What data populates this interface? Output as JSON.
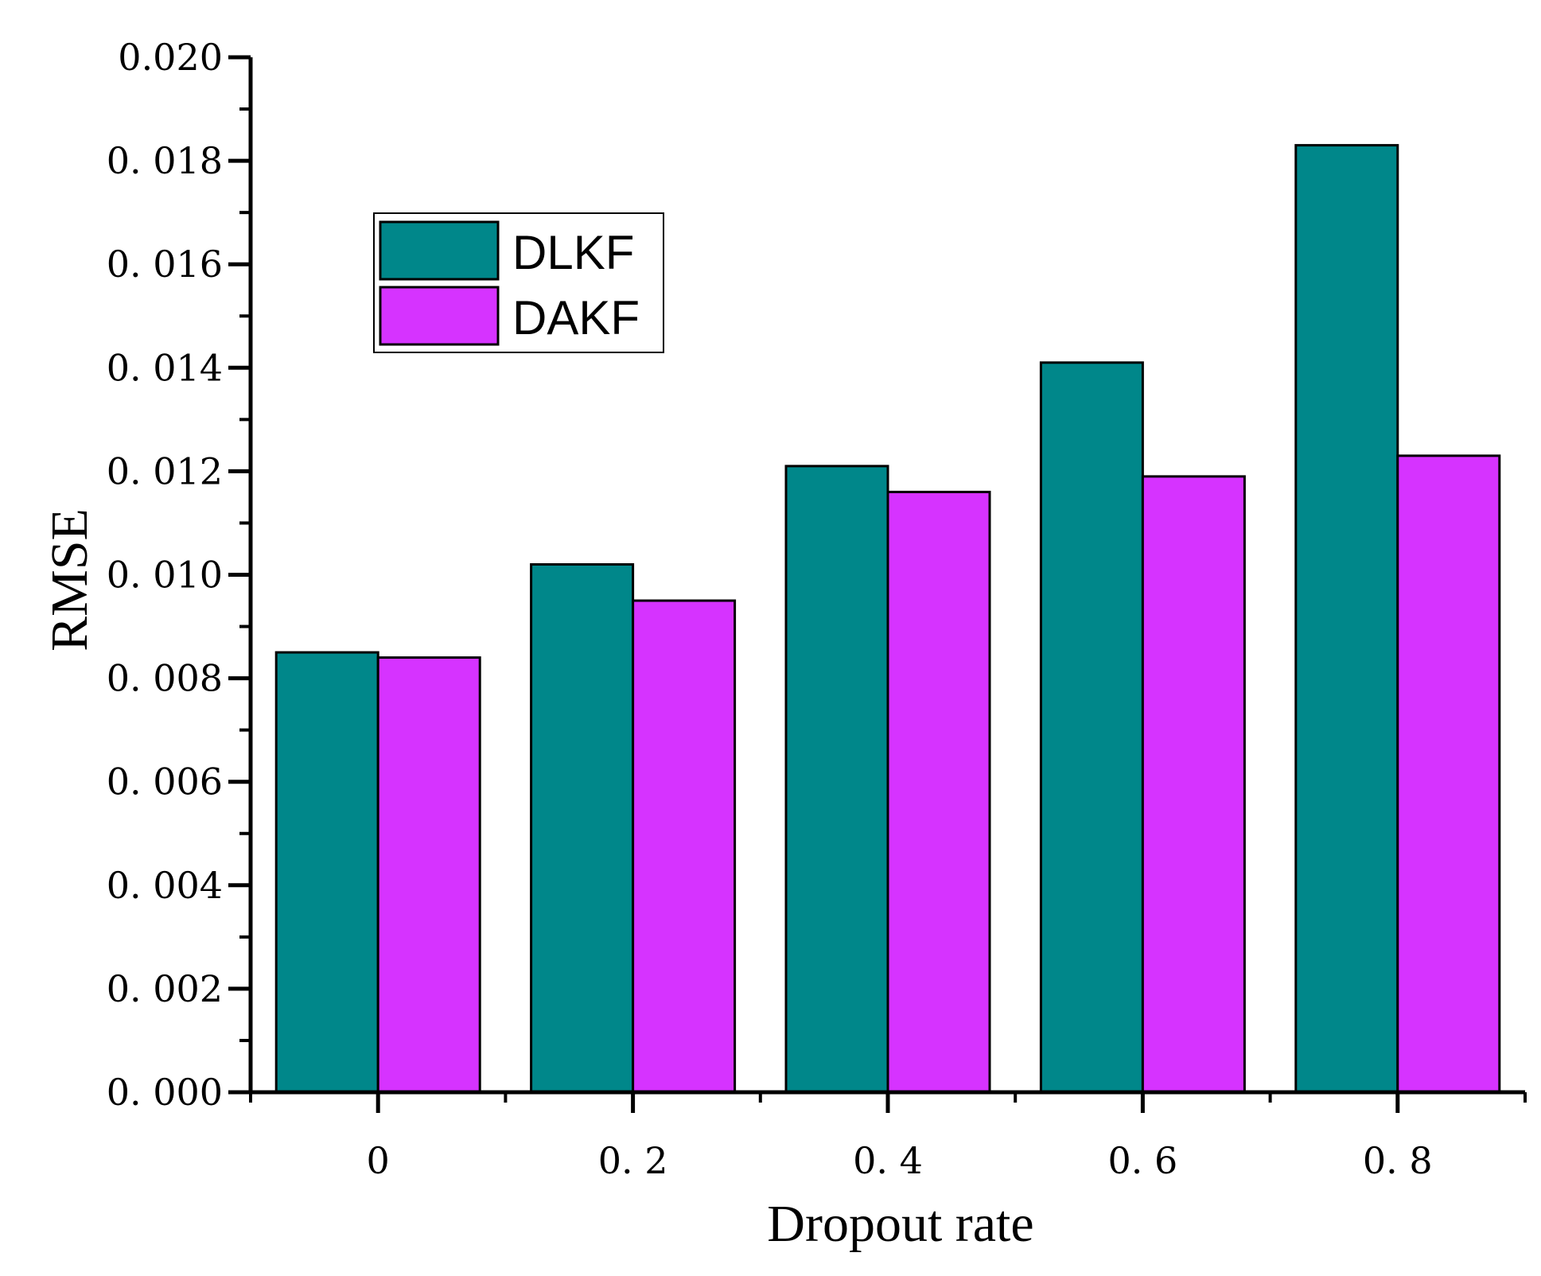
{
  "chart_data": {
    "type": "bar",
    "title": "",
    "xlabel": "Dropout rate",
    "ylabel": "RMSE",
    "categories": [
      "0",
      "0. 2",
      "0. 4",
      "0. 6",
      "0. 8"
    ],
    "series": [
      {
        "name": "DLKF",
        "color": "#00878A",
        "values": [
          0.0085,
          0.0102,
          0.0121,
          0.0141,
          0.0183
        ]
      },
      {
        "name": "DAKF",
        "color": "#D633FF",
        "values": [
          0.0084,
          0.0095,
          0.0116,
          0.0119,
          0.0123
        ]
      }
    ],
    "ylim": [
      0,
      0.02
    ],
    "yticks": [
      0,
      0.002,
      0.004,
      0.006,
      0.008,
      0.01,
      0.012,
      0.014,
      0.016,
      0.018,
      0.02
    ],
    "ytick_labels": [
      "0. 000",
      "0. 002",
      "0. 004",
      "0. 006",
      "0. 008",
      "0. 010",
      "0. 012",
      "0. 014",
      "0. 016",
      "0. 018",
      "0.020"
    ],
    "grid": false,
    "legend_position": "top-left"
  }
}
